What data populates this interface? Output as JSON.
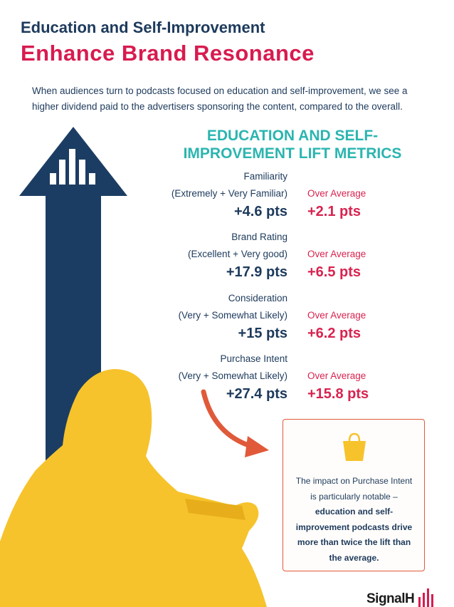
{
  "header": {
    "kicker": "Education and Self-Improvement",
    "title": "Enhance Brand Resonance",
    "intro": "When audiences turn to podcasts focused on education and self-improvement, we see a higher dividend paid to the advertisers sponsoring the content, compared to the overall."
  },
  "metrics": {
    "heading": "EDUCATION AND SELF-IMPROVEMENT LIFT METRICS",
    "items": [
      {
        "label": "Familiarity",
        "detail": "(Extremely + Very Familiar)",
        "value": "+4.6 pts",
        "compare_label": "Over Average",
        "compare_value": "+2.1 pts"
      },
      {
        "label": "Brand Rating",
        "detail": "(Excellent + Very good)",
        "value": "+17.9 pts",
        "compare_label": "Over Average",
        "compare_value": "+6.5 pts"
      },
      {
        "label": "Consideration",
        "detail": "(Very + Somewhat Likely)",
        "value": "+15 pts",
        "compare_label": "Over Average",
        "compare_value": "+6.2 pts"
      },
      {
        "label": "Purchase Intent",
        "detail": "(Very + Somewhat Likely)",
        "value": "+27.4 pts",
        "compare_label": "Over Average",
        "compare_value": "+15.8 pts"
      }
    ]
  },
  "callout": {
    "text": "The impact on Purchase Intent is particularly notable – ",
    "emphasis": "education and self-improvement podcasts drive more than twice the lift than the average."
  },
  "logo": "SignalH"
}
